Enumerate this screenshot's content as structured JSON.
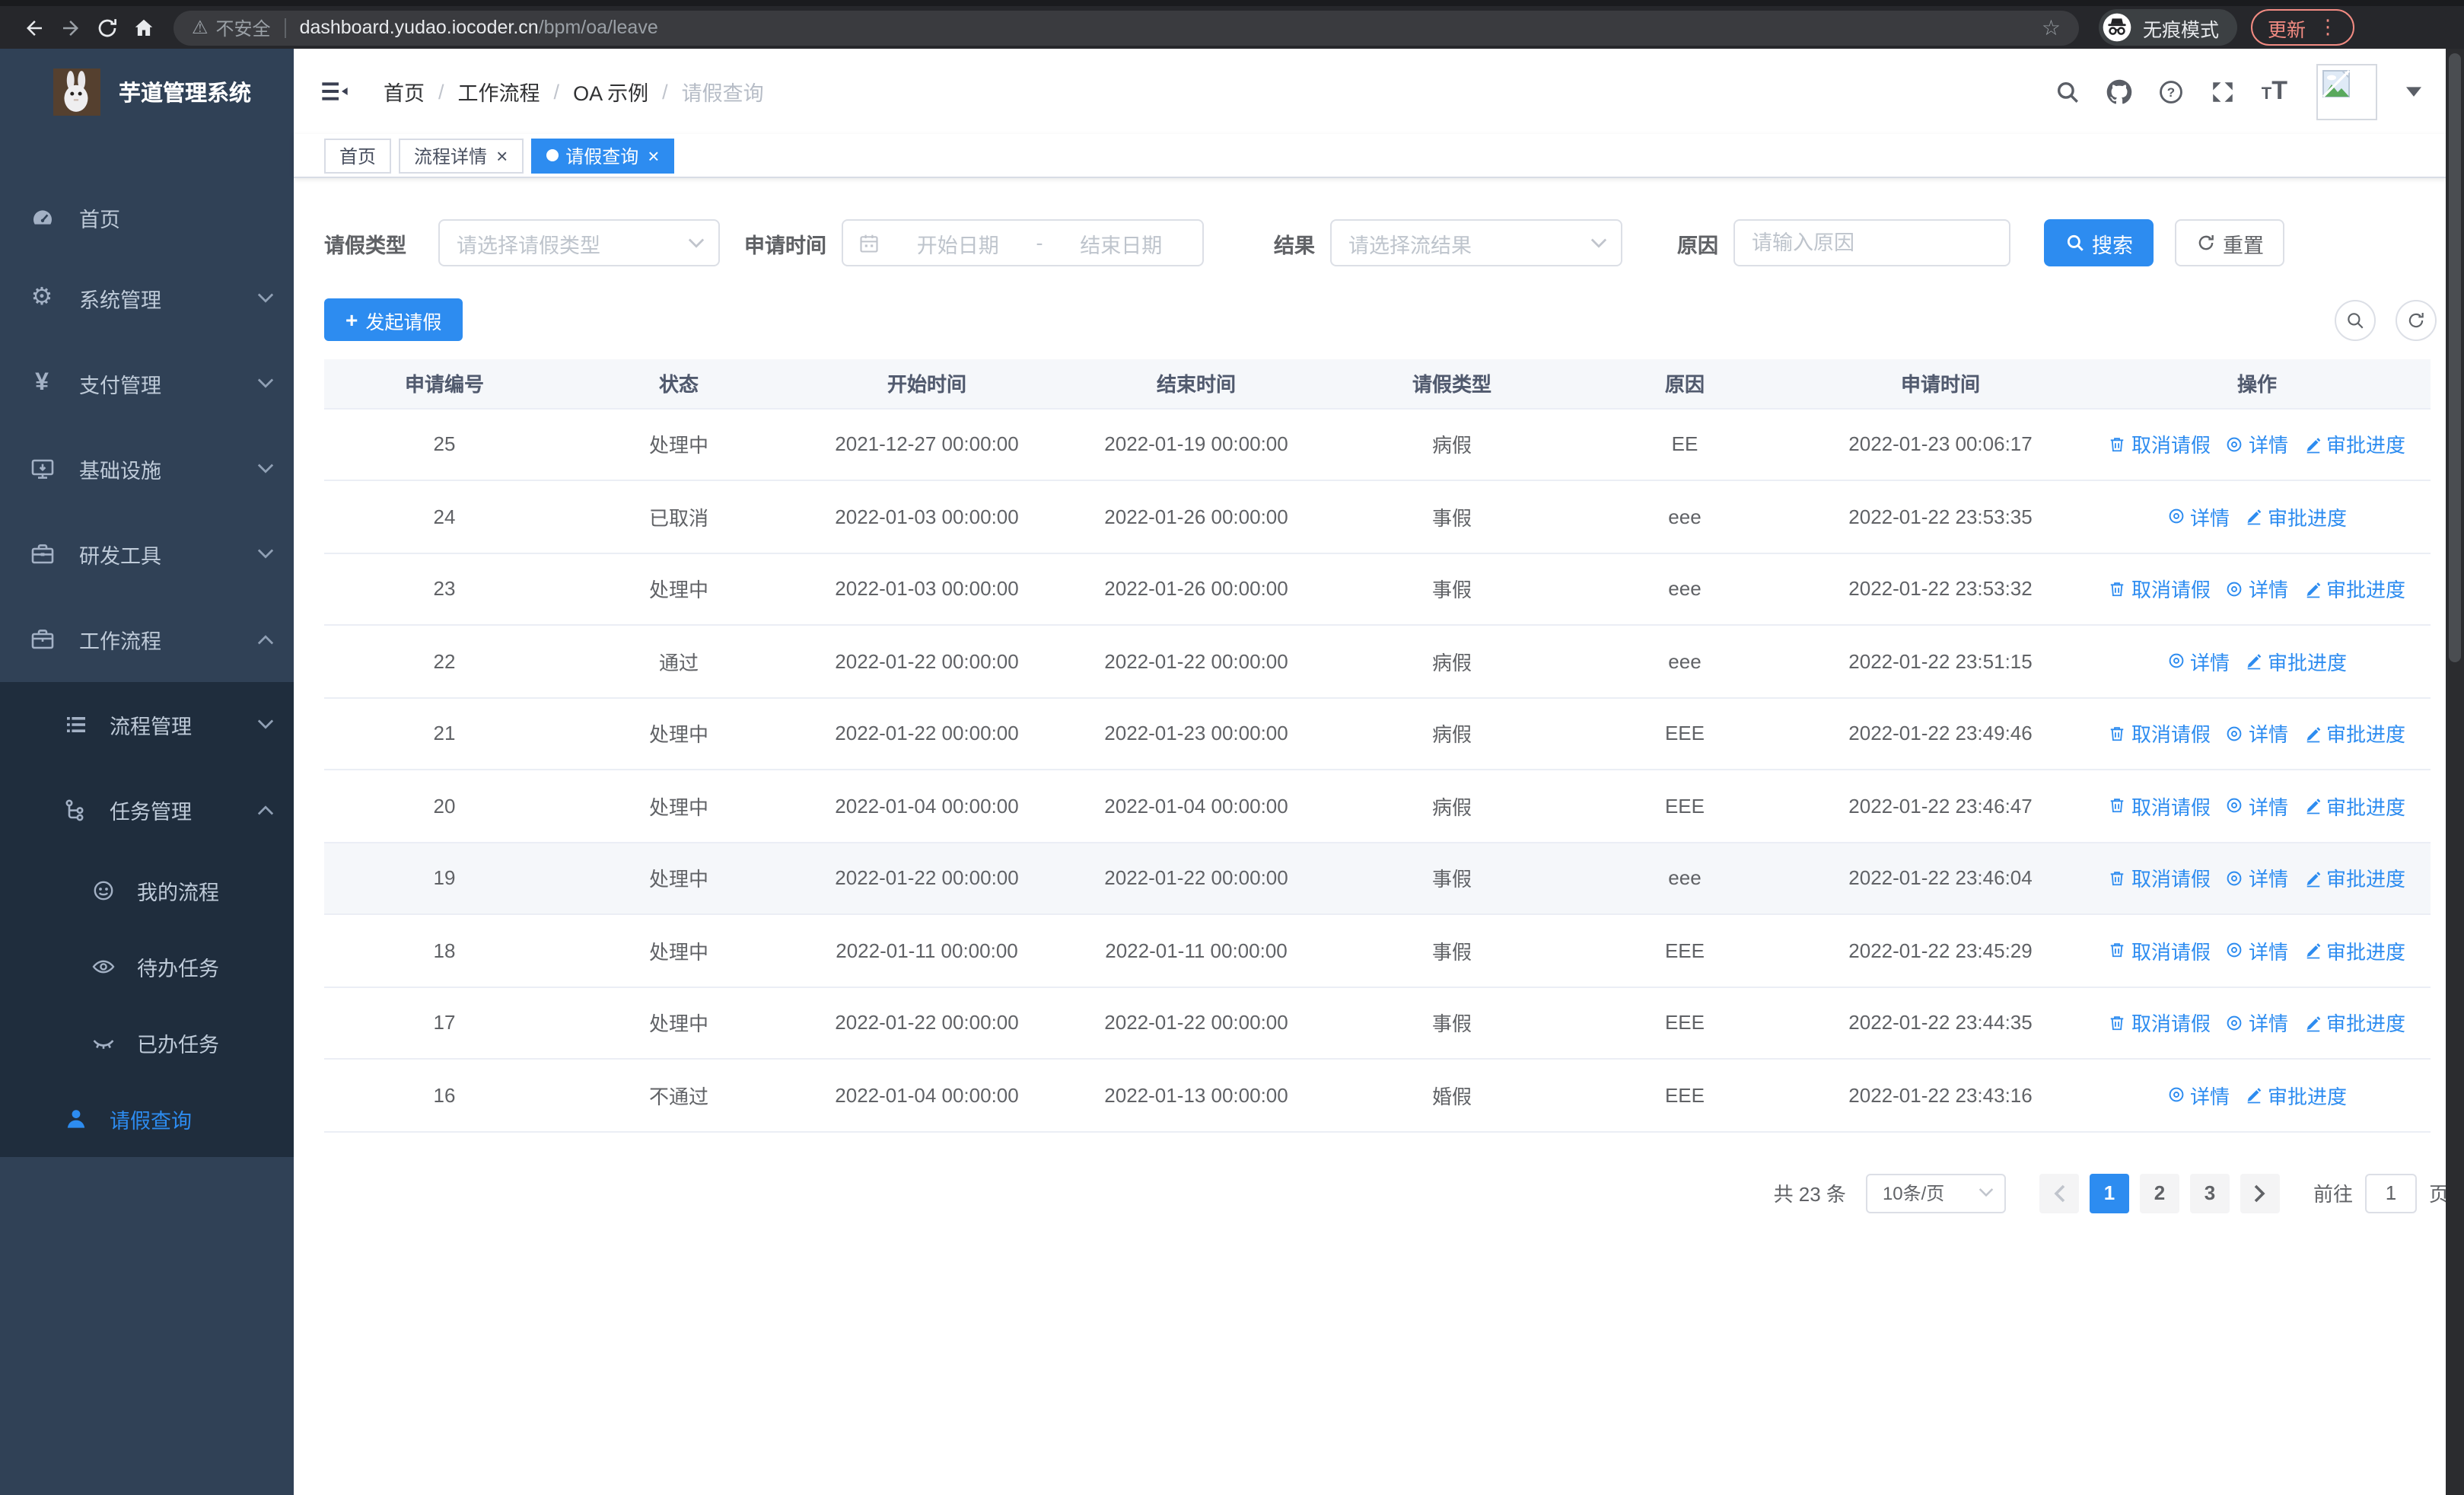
{
  "browser": {
    "security_label": "不安全",
    "url_host": "dashboard.yudao.iocoder.cn",
    "url_path": "/bpm/oa/leave",
    "incognito_label": "无痕模式",
    "update_label": "更新"
  },
  "sidebar": {
    "title": "芋道管理系统",
    "items": [
      {
        "name": "home",
        "label": "首页",
        "icon": "dashboard-icon"
      },
      {
        "name": "system",
        "label": "系统管理",
        "icon": "gear-icon",
        "chevron": "down"
      },
      {
        "name": "payment",
        "label": "支付管理",
        "icon": "yen-icon",
        "chevron": "down"
      },
      {
        "name": "infra",
        "label": "基础设施",
        "icon": "monitor-icon",
        "chevron": "down"
      },
      {
        "name": "dev-tools",
        "label": "研发工具",
        "icon": "toolbox-icon",
        "chevron": "down"
      },
      {
        "name": "workflow",
        "label": "工作流程",
        "icon": "briefcase-icon",
        "chevron": "up"
      }
    ],
    "submenu": [
      {
        "name": "process-mgmt",
        "label": "流程管理",
        "icon": "list-icon",
        "chevron": "down",
        "level": 1
      },
      {
        "name": "task-mgmt",
        "label": "任务管理",
        "icon": "tree-icon",
        "chevron": "up",
        "level": 1
      },
      {
        "name": "my-process",
        "label": "我的流程",
        "icon": "robot-icon",
        "level": 2
      },
      {
        "name": "todo-tasks",
        "label": "待办任务",
        "icon": "eye-open-icon",
        "level": 2
      },
      {
        "name": "done-tasks",
        "label": "已办任务",
        "icon": "eye-closed-icon",
        "level": 2
      },
      {
        "name": "leave-query",
        "label": "请假查询",
        "icon": "user-icon",
        "level": 1,
        "active": true
      }
    ]
  },
  "header": {
    "breadcrumb": [
      "首页",
      "工作流程",
      "OA 示例",
      "请假查询"
    ]
  },
  "tabs": [
    {
      "label": "首页"
    },
    {
      "label": "流程详情",
      "closable": true
    },
    {
      "label": "请假查询",
      "closable": true,
      "active": true
    }
  ],
  "filters": {
    "leave_type_label": "请假类型",
    "leave_type_placeholder": "请选择请假类型",
    "apply_time_label": "申请时间",
    "start_placeholder": "开始日期",
    "range_separator": "-",
    "end_placeholder": "结束日期",
    "result_label": "结果",
    "result_placeholder": "请选择流结果",
    "reason_label": "原因",
    "reason_placeholder": "请输入原因",
    "search_label": "搜索",
    "reset_label": "重置"
  },
  "toolbar": {
    "create_label": "发起请假"
  },
  "table": {
    "columns": [
      "申请编号",
      "状态",
      "开始时间",
      "结束时间",
      "请假类型",
      "原因",
      "申请时间",
      "操作"
    ],
    "action_labels": {
      "cancel": "取消请假",
      "detail": "详情",
      "progress": "审批进度"
    },
    "highlighted_row_id": "19",
    "rows": [
      {
        "id": "25",
        "status": "处理中",
        "start": "2021-12-27 00:00:00",
        "end": "2022-01-19 00:00:00",
        "type": "病假",
        "reason": "EE",
        "applied": "2022-01-23 00:06:17",
        "cancelable": true
      },
      {
        "id": "24",
        "status": "已取消",
        "start": "2022-01-03 00:00:00",
        "end": "2022-01-26 00:00:00",
        "type": "事假",
        "reason": "eee",
        "applied": "2022-01-22 23:53:35",
        "cancelable": false
      },
      {
        "id": "23",
        "status": "处理中",
        "start": "2022-01-03 00:00:00",
        "end": "2022-01-26 00:00:00",
        "type": "事假",
        "reason": "eee",
        "applied": "2022-01-22 23:53:32",
        "cancelable": true
      },
      {
        "id": "22",
        "status": "通过",
        "start": "2022-01-22 00:00:00",
        "end": "2022-01-22 00:00:00",
        "type": "病假",
        "reason": "eee",
        "applied": "2022-01-22 23:51:15",
        "cancelable": false
      },
      {
        "id": "21",
        "status": "处理中",
        "start": "2022-01-22 00:00:00",
        "end": "2022-01-23 00:00:00",
        "type": "病假",
        "reason": "EEE",
        "applied": "2022-01-22 23:49:46",
        "cancelable": true
      },
      {
        "id": "20",
        "status": "处理中",
        "start": "2022-01-04 00:00:00",
        "end": "2022-01-04 00:00:00",
        "type": "病假",
        "reason": "EEE",
        "applied": "2022-01-22 23:46:47",
        "cancelable": true
      },
      {
        "id": "19",
        "status": "处理中",
        "start": "2022-01-22 00:00:00",
        "end": "2022-01-22 00:00:00",
        "type": "事假",
        "reason": "eee",
        "applied": "2022-01-22 23:46:04",
        "cancelable": true
      },
      {
        "id": "18",
        "status": "处理中",
        "start": "2022-01-11 00:00:00",
        "end": "2022-01-11 00:00:00",
        "type": "事假",
        "reason": "EEE",
        "applied": "2022-01-22 23:45:29",
        "cancelable": true
      },
      {
        "id": "17",
        "status": "处理中",
        "start": "2022-01-22 00:00:00",
        "end": "2022-01-22 00:00:00",
        "type": "事假",
        "reason": "EEE",
        "applied": "2022-01-22 23:44:35",
        "cancelable": true
      },
      {
        "id": "16",
        "status": "不通过",
        "start": "2022-01-04 00:00:00",
        "end": "2022-01-13 00:00:00",
        "type": "婚假",
        "reason": "EEE",
        "applied": "2022-01-22 23:43:16",
        "cancelable": false
      }
    ]
  },
  "pagination": {
    "total_label": "共 23 条",
    "page_size_label": "10条/页",
    "pages": [
      "1",
      "2",
      "3"
    ],
    "active_page": "1",
    "goto_label": "前往",
    "goto_value": "1",
    "page_unit_label": "页"
  },
  "colors": {
    "primary": "#2d8cf0",
    "sidebar_bg": "#304156",
    "submenu_bg": "#1f2d3d",
    "chrome_bg": "#26272b",
    "update_accent": "#f28b82"
  }
}
